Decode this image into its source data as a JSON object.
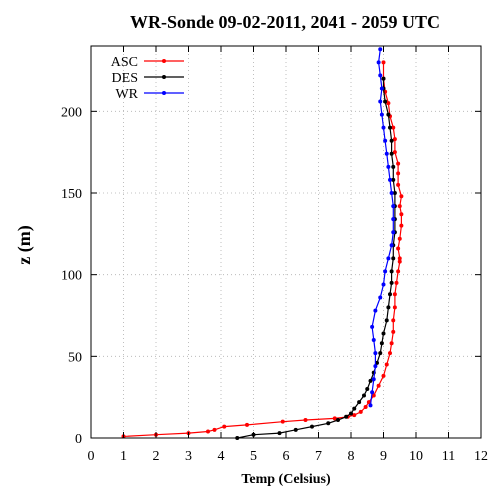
{
  "chart_data": {
    "type": "line",
    "title": "WR-Sonde 09-02-2011, 2041 - 2059 UTC",
    "xlabel": "Temp (Celsius)",
    "ylabel": "z (m)",
    "xlim": [
      0,
      12
    ],
    "ylim": [
      0,
      240
    ],
    "xticks": [
      0,
      1,
      2,
      3,
      4,
      5,
      6,
      7,
      8,
      9,
      10,
      11,
      12
    ],
    "yticks": [
      0,
      50,
      100,
      150,
      200
    ],
    "grid": true,
    "legend_position": "top-left",
    "series": [
      {
        "name": "ASC",
        "color": "#ff0000",
        "points": [
          [
            1.0,
            1
          ],
          [
            2.0,
            2
          ],
          [
            3.0,
            3
          ],
          [
            3.6,
            4
          ],
          [
            3.8,
            5
          ],
          [
            4.1,
            7
          ],
          [
            4.8,
            8
          ],
          [
            5.9,
            10
          ],
          [
            6.6,
            11
          ],
          [
            7.5,
            12
          ],
          [
            7.9,
            13
          ],
          [
            8.1,
            14
          ],
          [
            8.3,
            16
          ],
          [
            8.45,
            19
          ],
          [
            8.55,
            22
          ],
          [
            8.7,
            26
          ],
          [
            8.85,
            32
          ],
          [
            9.0,
            38
          ],
          [
            9.1,
            45
          ],
          [
            9.2,
            52
          ],
          [
            9.25,
            58
          ],
          [
            9.3,
            65
          ],
          [
            9.3,
            72
          ],
          [
            9.35,
            80
          ],
          [
            9.35,
            88
          ],
          [
            9.4,
            95
          ],
          [
            9.45,
            102
          ],
          [
            9.5,
            108
          ],
          [
            9.5,
            110
          ],
          [
            9.45,
            116
          ],
          [
            9.5,
            122
          ],
          [
            9.55,
            130
          ],
          [
            9.55,
            137
          ],
          [
            9.5,
            142
          ],
          [
            9.55,
            148
          ],
          [
            9.45,
            155
          ],
          [
            9.45,
            162
          ],
          [
            9.45,
            168
          ],
          [
            9.35,
            175
          ],
          [
            9.35,
            183
          ],
          [
            9.3,
            190
          ],
          [
            9.2,
            197
          ],
          [
            9.15,
            205
          ],
          [
            9.05,
            212
          ],
          [
            9.0,
            220
          ],
          [
            9.0,
            230
          ]
        ]
      },
      {
        "name": "DES",
        "color": "#000000",
        "points": [
          [
            4.5,
            0
          ],
          [
            5.0,
            2
          ],
          [
            5.8,
            3
          ],
          [
            6.3,
            5
          ],
          [
            6.8,
            7
          ],
          [
            7.3,
            9
          ],
          [
            7.6,
            11
          ],
          [
            7.85,
            13
          ],
          [
            8.0,
            15
          ],
          [
            8.1,
            18
          ],
          [
            8.25,
            22
          ],
          [
            8.4,
            26
          ],
          [
            8.5,
            30
          ],
          [
            8.6,
            35
          ],
          [
            8.7,
            40
          ],
          [
            8.8,
            46
          ],
          [
            8.9,
            52
          ],
          [
            8.95,
            58
          ],
          [
            9.0,
            64
          ],
          [
            9.1,
            72
          ],
          [
            9.15,
            80
          ],
          [
            9.2,
            88
          ],
          [
            9.25,
            95
          ],
          [
            9.25,
            102
          ],
          [
            9.3,
            110
          ],
          [
            9.3,
            118
          ],
          [
            9.35,
            126
          ],
          [
            9.35,
            134
          ],
          [
            9.35,
            142
          ],
          [
            9.35,
            150
          ],
          [
            9.3,
            158
          ],
          [
            9.3,
            166
          ],
          [
            9.25,
            174
          ],
          [
            9.25,
            182
          ],
          [
            9.2,
            190
          ],
          [
            9.15,
            198
          ],
          [
            9.05,
            206
          ],
          [
            9.0,
            214
          ],
          [
            9.0,
            220
          ]
        ]
      },
      {
        "name": "WR",
        "color": "#0000ff",
        "points": [
          [
            8.6,
            20
          ],
          [
            8.65,
            28
          ],
          [
            8.7,
            36
          ],
          [
            8.75,
            44
          ],
          [
            8.75,
            52
          ],
          [
            8.7,
            60
          ],
          [
            8.65,
            68
          ],
          [
            8.75,
            78
          ],
          [
            8.9,
            86
          ],
          [
            9.0,
            94
          ],
          [
            9.05,
            102
          ],
          [
            9.15,
            110
          ],
          [
            9.25,
            118
          ],
          [
            9.3,
            126
          ],
          [
            9.3,
            134
          ],
          [
            9.3,
            142
          ],
          [
            9.25,
            150
          ],
          [
            9.2,
            158
          ],
          [
            9.15,
            166
          ],
          [
            9.1,
            174
          ],
          [
            9.05,
            182
          ],
          [
            9.0,
            190
          ],
          [
            8.95,
            198
          ],
          [
            8.9,
            206
          ],
          [
            8.95,
            214
          ],
          [
            8.9,
            222
          ],
          [
            8.85,
            230
          ],
          [
            8.9,
            238
          ]
        ]
      }
    ]
  }
}
